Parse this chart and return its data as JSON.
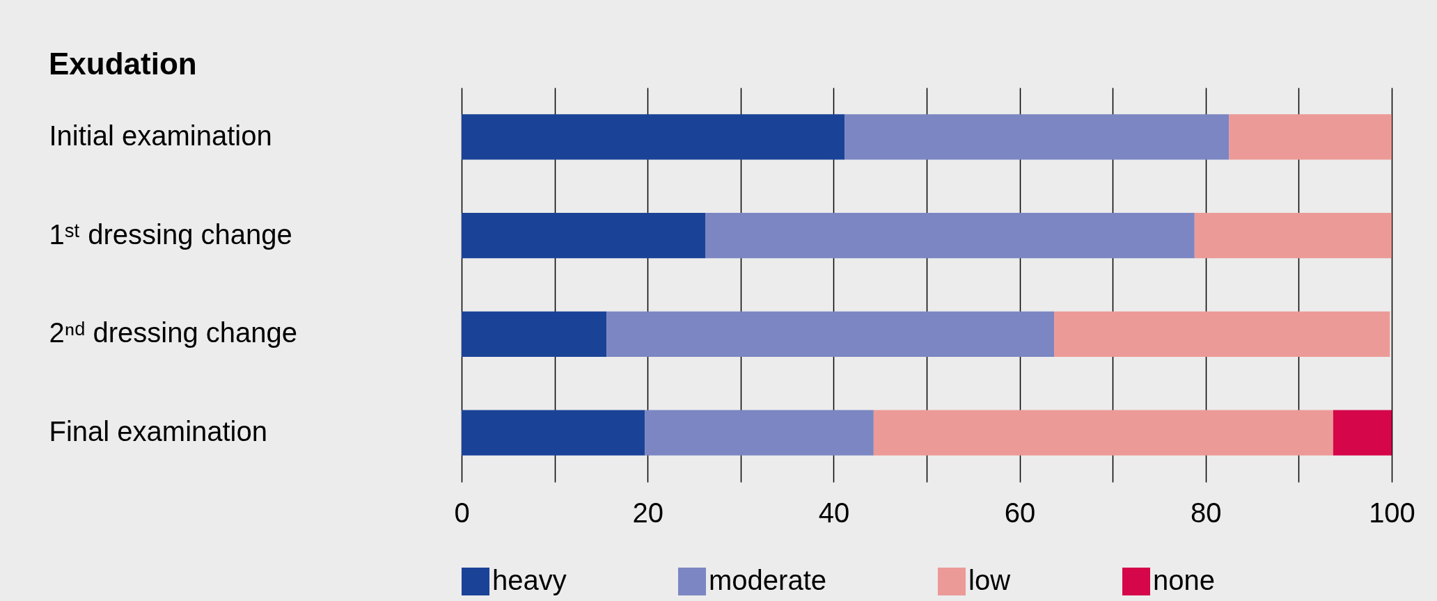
{
  "chart_data": {
    "type": "bar",
    "orientation": "horizontal",
    "stacked": true,
    "title": "Exudation",
    "categories": [
      "Initial examination",
      "1ˢᵗ dressing change",
      "2ⁿᵈ dressing change",
      "Final examination"
    ],
    "series": [
      {
        "name": "heavy",
        "color": "#1a4297",
        "values": [
          41.2,
          26.2,
          15.6,
          19.7
        ]
      },
      {
        "name": "moderate",
        "color": "#7b86c2",
        "values": [
          41.3,
          52.6,
          48.1,
          24.6
        ]
      },
      {
        "name": "low",
        "color": "#ec9a97",
        "values": [
          17.5,
          21.2,
          36.1,
          49.4
        ]
      },
      {
        "name": "none",
        "color": "#d5064a",
        "values": [
          null,
          null,
          null,
          6.3
        ]
      }
    ],
    "xlim": [
      0,
      100
    ],
    "xticks": [
      0,
      {
        "value": 10,
        "label": null
      },
      20,
      {
        "value": 30,
        "label": null
      },
      40,
      {
        "value": 50,
        "label": null
      },
      60,
      {
        "value": 70,
        "label": null
      },
      80,
      {
        "value": 90,
        "label": null
      },
      100
    ],
    "grid": "x",
    "legend": "bottom"
  }
}
